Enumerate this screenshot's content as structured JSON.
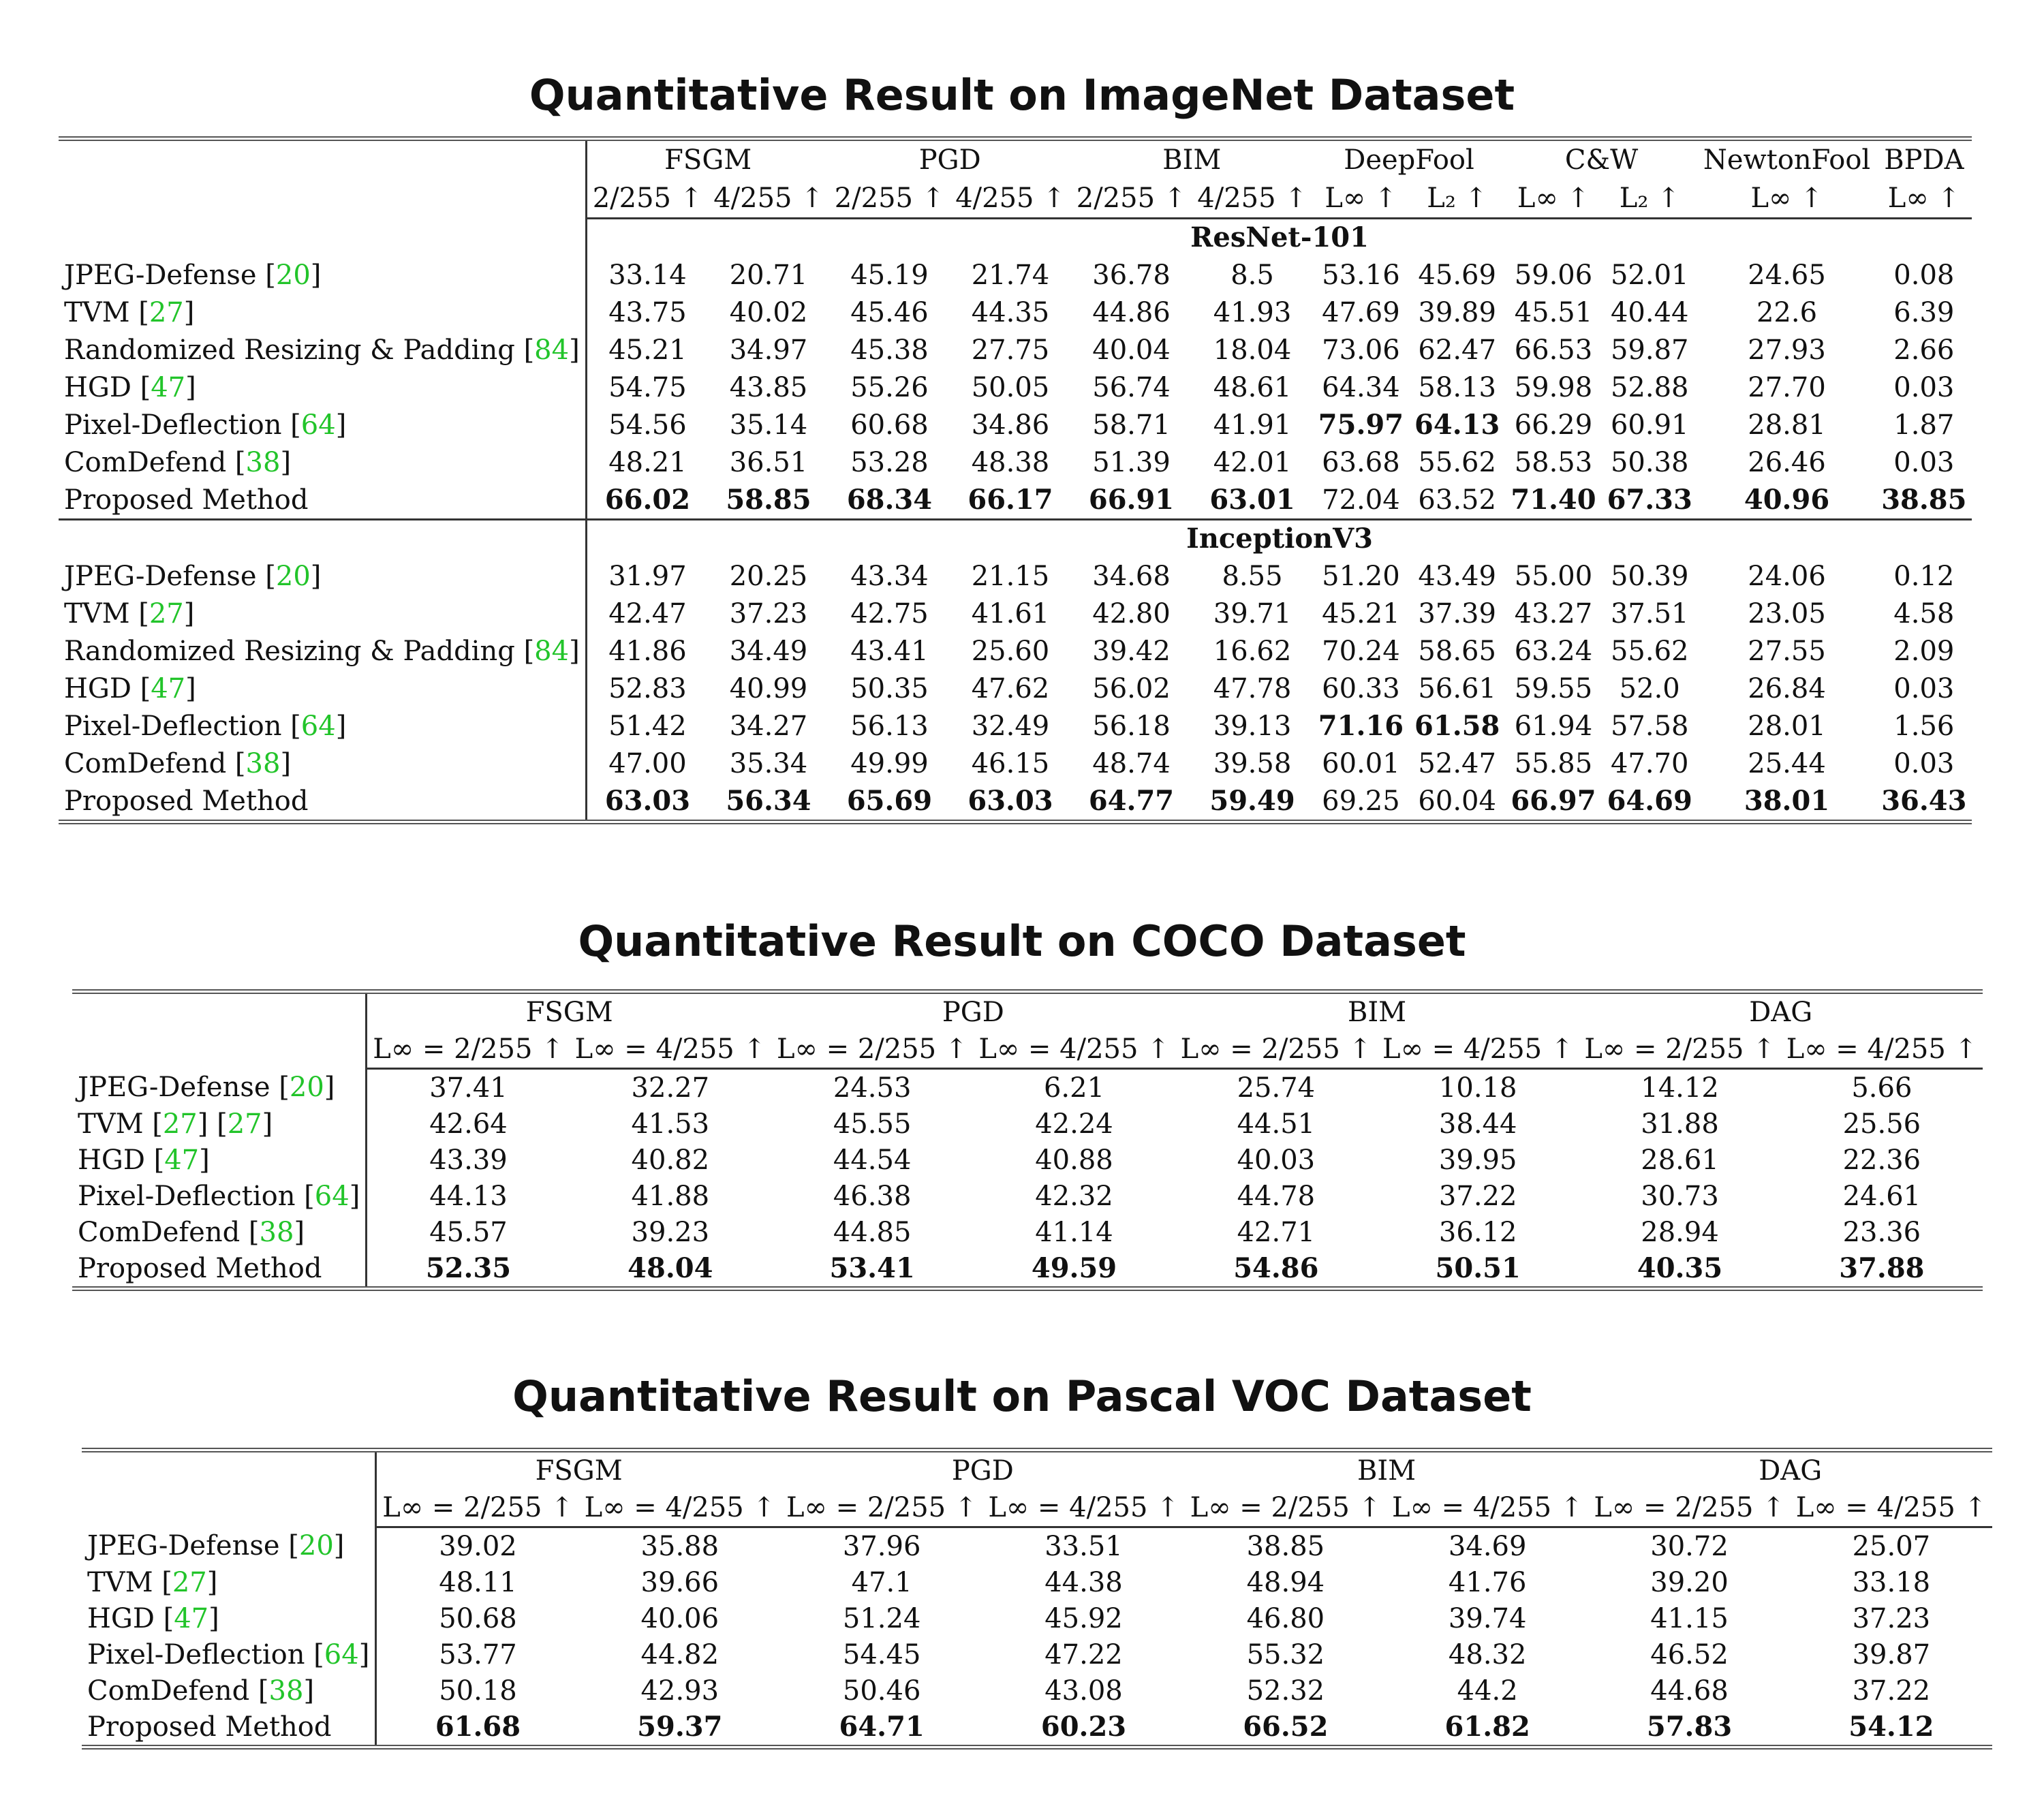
{
  "titles": {
    "imagenet": "Quantitative Result on ImageNet Dataset",
    "coco": "Quantitative Result on COCO Dataset",
    "voc": "Quantitative Result on Pascal VOC Dataset"
  },
  "imagenet": {
    "attacks": [
      "FSGM",
      "PGD",
      "BIM",
      "DeepFool",
      "C&W",
      "NewtonFool",
      "BPDA"
    ],
    "subheaders": [
      "2/255 ↑",
      "4/255 ↑",
      "2/255 ↑",
      "4/255 ↑",
      "2/255 ↑",
      "4/255 ↑",
      "L∞ ↑",
      "L₂ ↑",
      "L∞ ↑",
      "L₂ ↑",
      "L∞ ↑",
      "L∞ ↑"
    ],
    "models": [
      "ResNet-101",
      "InceptionV3"
    ],
    "resnet": [
      {
        "name": "JPEG-Defense ",
        "cite": "20",
        "values": [
          "33.14",
          "20.71",
          "45.19",
          "21.74",
          "36.78",
          "8.5",
          "53.16",
          "45.69",
          "59.06",
          "52.01",
          "24.65",
          "0.08"
        ]
      },
      {
        "name": "TVM ",
        "cite": "27",
        "values": [
          "43.75",
          "40.02",
          "45.46",
          "44.35",
          "44.86",
          "41.93",
          "47.69",
          "39.89",
          "45.51",
          "40.44",
          "22.6",
          "6.39"
        ]
      },
      {
        "name": "Randomized Resizing & Padding ",
        "cite": "84",
        "values": [
          "45.21",
          "34.97",
          "45.38",
          "27.75",
          "40.04",
          "18.04",
          "73.06",
          "62.47",
          "66.53",
          "59.87",
          "27.93",
          "2.66"
        ]
      },
      {
        "name": "HGD ",
        "cite": "47",
        "values": [
          "54.75",
          "43.85",
          "55.26",
          "50.05",
          "56.74",
          "48.61",
          "64.34",
          "58.13",
          "59.98",
          "52.88",
          "27.70",
          "0.03"
        ]
      },
      {
        "name": "Pixel-Deflection ",
        "cite": "64",
        "values": [
          "54.56",
          "35.14",
          "60.68",
          "34.86",
          "58.71",
          "41.91",
          "75.97",
          "64.13",
          "66.29",
          "60.91",
          "28.81",
          "1.87"
        ]
      },
      {
        "name": "ComDefend ",
        "cite": "38",
        "values": [
          "48.21",
          "36.51",
          "53.28",
          "48.38",
          "51.39",
          "42.01",
          "63.68",
          "55.62",
          "58.53",
          "50.38",
          "26.46",
          "0.03"
        ]
      },
      {
        "name": "Proposed Method",
        "cite": "",
        "values": [
          "66.02",
          "58.85",
          "68.34",
          "66.17",
          "66.91",
          "63.01",
          "72.04",
          "63.52",
          "71.40",
          "67.33",
          "40.96",
          "38.85"
        ]
      }
    ],
    "inception": [
      {
        "name": "JPEG-Defense ",
        "cite": "20",
        "values": [
          "31.97",
          "20.25",
          "43.34",
          "21.15",
          "34.68",
          "8.55",
          "51.20",
          "43.49",
          "55.00",
          "50.39",
          "24.06",
          "0.12"
        ]
      },
      {
        "name": "TVM ",
        "cite": "27",
        "values": [
          "42.47",
          "37.23",
          "42.75",
          "41.61",
          "42.80",
          "39.71",
          "45.21",
          "37.39",
          "43.27",
          "37.51",
          "23.05",
          "4.58"
        ]
      },
      {
        "name": "Randomized Resizing & Padding ",
        "cite": "84",
        "values": [
          "41.86",
          "34.49",
          "43.41",
          "25.60",
          "39.42",
          "16.62",
          "70.24",
          "58.65",
          "63.24",
          "55.62",
          "27.55",
          "2.09"
        ]
      },
      {
        "name": "HGD ",
        "cite": "47",
        "values": [
          "52.83",
          "40.99",
          "50.35",
          "47.62",
          "56.02",
          "47.78",
          "60.33",
          "56.61",
          "59.55",
          "52.0",
          "26.84",
          "0.03"
        ]
      },
      {
        "name": "Pixel-Deflection ",
        "cite": "64",
        "values": [
          "51.42",
          "34.27",
          "56.13",
          "32.49",
          "56.18",
          "39.13",
          "71.16",
          "61.58",
          "61.94",
          "57.58",
          "28.01",
          "1.56"
        ]
      },
      {
        "name": "ComDefend ",
        "cite": "38",
        "values": [
          "47.00",
          "35.34",
          "49.99",
          "46.15",
          "48.74",
          "39.58",
          "60.01",
          "52.47",
          "55.85",
          "47.70",
          "25.44",
          "0.03"
        ]
      },
      {
        "name": "Proposed Method",
        "cite": "",
        "values": [
          "63.03",
          "56.34",
          "65.69",
          "63.03",
          "64.77",
          "59.49",
          "69.25",
          "60.04",
          "66.97",
          "64.69",
          "38.01",
          "36.43"
        ]
      }
    ]
  },
  "coco": {
    "attacks": [
      "FSGM",
      "PGD",
      "BIM",
      "DAG"
    ],
    "subheaders": [
      "L∞ = 2/255 ↑",
      "L∞ = 4/255 ↑",
      "L∞ = 2/255 ↑",
      "L∞ = 4/255 ↑",
      "L∞ = 2/255 ↑",
      "L∞ = 4/255 ↑",
      "L∞ = 2/255 ↑",
      "L∞ = 4/255 ↑"
    ],
    "rows": [
      {
        "name": "JPEG-Defense ",
        "cite": "20",
        "cite2": "",
        "values": [
          "37.41",
          "32.27",
          "24.53",
          "6.21",
          "25.74",
          "10.18",
          "14.12",
          "5.66"
        ]
      },
      {
        "name": "TVM ",
        "cite": "27",
        "cite2": "27",
        "values": [
          "42.64",
          "41.53",
          "45.55",
          "42.24",
          "44.51",
          "38.44",
          "31.88",
          "25.56"
        ]
      },
      {
        "name": "HGD ",
        "cite": "47",
        "cite2": "",
        "values": [
          "43.39",
          "40.82",
          "44.54",
          "40.88",
          "40.03",
          "39.95",
          "28.61",
          "22.36"
        ]
      },
      {
        "name": "Pixel-Deflection ",
        "cite": "64",
        "cite2": "",
        "values": [
          "44.13",
          "41.88",
          "46.38",
          "42.32",
          "44.78",
          "37.22",
          "30.73",
          "24.61"
        ]
      },
      {
        "name": "ComDefend ",
        "cite": "38",
        "cite2": "",
        "values": [
          "45.57",
          "39.23",
          "44.85",
          "41.14",
          "42.71",
          "36.12",
          "28.94",
          "23.36"
        ]
      },
      {
        "name": "Proposed Method",
        "cite": "",
        "cite2": "",
        "values": [
          "52.35",
          "48.04",
          "53.41",
          "49.59",
          "54.86",
          "50.51",
          "40.35",
          "37.88"
        ]
      }
    ]
  },
  "voc": {
    "attacks": [
      "FSGM",
      "PGD",
      "BIM",
      "DAG"
    ],
    "subheaders": [
      "L∞ = 2/255 ↑",
      "L∞ = 4/255 ↑",
      "L∞ = 2/255 ↑",
      "L∞ = 4/255 ↑",
      "L∞ = 2/255 ↑",
      "L∞ = 4/255 ↑",
      "L∞ = 2/255 ↑",
      "L∞ = 4/255 ↑"
    ],
    "rows": [
      {
        "name": "JPEG-Defense ",
        "cite": "20",
        "values": [
          "39.02",
          "35.88",
          "37.96",
          "33.51",
          "38.85",
          "34.69",
          "30.72",
          "25.07"
        ]
      },
      {
        "name": "TVM ",
        "cite": "27",
        "values": [
          "48.11",
          "39.66",
          "47.1",
          "44.38",
          "48.94",
          "41.76",
          "39.20",
          "33.18"
        ]
      },
      {
        "name": "HGD ",
        "cite": "47",
        "values": [
          "50.68",
          "40.06",
          "51.24",
          "45.92",
          "46.80",
          "39.74",
          "41.15",
          "37.23"
        ]
      },
      {
        "name": "Pixel-Deflection ",
        "cite": "64",
        "values": [
          "53.77",
          "44.82",
          "54.45",
          "47.22",
          "55.32",
          "48.32",
          "46.52",
          "39.87"
        ]
      },
      {
        "name": "ComDefend ",
        "cite": "38",
        "values": [
          "50.18",
          "42.93",
          "50.46",
          "43.08",
          "52.32",
          "44.2",
          "44.68",
          "37.22"
        ]
      },
      {
        "name": "Proposed Method",
        "cite": "",
        "values": [
          "61.68",
          "59.37",
          "64.71",
          "60.23",
          "66.52",
          "61.82",
          "57.83",
          "54.12"
        ]
      }
    ]
  },
  "bold": {
    "imagenet_resnet_pixel_deflection": [
      6,
      7
    ],
    "imagenet_inception_pixel_deflection": [
      6,
      7
    ],
    "imagenet_proposed_except": [
      6,
      7
    ]
  }
}
